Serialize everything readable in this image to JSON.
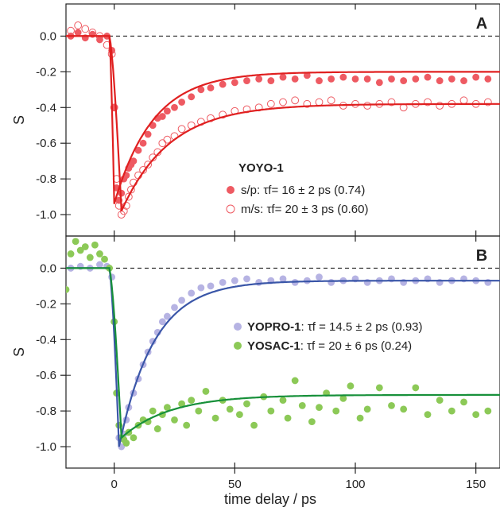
{
  "chart_data": [
    {
      "panel": "A",
      "type": "scatter",
      "xlabel": "time delay / ps",
      "ylabel": "S",
      "xlim": [
        -20,
        160
      ],
      "ylim": [
        -1.12,
        0.18
      ],
      "yticks": [
        0.0,
        -0.2,
        -0.4,
        -0.6,
        -0.8,
        -1.0
      ],
      "ytick_labels": [
        "0.0",
        "-0.2",
        "-0.4",
        "-0.6",
        "-0.8",
        "-1.0"
      ],
      "zero_line": "dashed",
      "legend_title": "YOYO-1",
      "legend_position": "lower-right",
      "series": [
        {
          "name": "s/p",
          "legend_label": "s/p: τf= 16 ± 2 ps (0.74)",
          "marker": "filled-circle",
          "color": "#ee5a62",
          "points": [
            [
              -18,
              0.0
            ],
            [
              -15,
              0.02
            ],
            [
              -12,
              -0.01
            ],
            [
              -9,
              0.01
            ],
            [
              -6,
              -0.02
            ],
            [
              -3,
              0.0
            ],
            [
              -1,
              -0.08
            ],
            [
              0,
              -0.4
            ],
            [
              1,
              -0.85
            ],
            [
              2,
              -0.92
            ],
            [
              3,
              -0.88
            ],
            [
              4,
              -0.8
            ],
            [
              5,
              -0.78
            ],
            [
              6,
              -0.74
            ],
            [
              7,
              -0.72
            ],
            [
              8,
              -0.7
            ],
            [
              10,
              -0.64
            ],
            [
              12,
              -0.6
            ],
            [
              14,
              -0.55
            ],
            [
              16,
              -0.5
            ],
            [
              18,
              -0.46
            ],
            [
              20,
              -0.45
            ],
            [
              22,
              -0.42
            ],
            [
              25,
              -0.4
            ],
            [
              28,
              -0.37
            ],
            [
              32,
              -0.34
            ],
            [
              36,
              -0.3
            ],
            [
              40,
              -0.29
            ],
            [
              45,
              -0.27
            ],
            [
              50,
              -0.26
            ],
            [
              55,
              -0.25
            ],
            [
              60,
              -0.24
            ],
            [
              65,
              -0.25
            ],
            [
              70,
              -0.23
            ],
            [
              75,
              -0.24
            ],
            [
              80,
              -0.22
            ],
            [
              85,
              -0.25
            ],
            [
              90,
              -0.24
            ],
            [
              95,
              -0.23
            ],
            [
              100,
              -0.24
            ],
            [
              105,
              -0.24
            ],
            [
              110,
              -0.26
            ],
            [
              115,
              -0.24
            ],
            [
              120,
              -0.25
            ],
            [
              125,
              -0.24
            ],
            [
              130,
              -0.23
            ],
            [
              135,
              -0.25
            ],
            [
              140,
              -0.24
            ],
            [
              145,
              -0.25
            ],
            [
              150,
              -0.23
            ],
            [
              155,
              -0.24
            ]
          ]
        },
        {
          "name": "m/s",
          "legend_label": "m/s: τf= 20 ± 3 ps (0.60)",
          "marker": "open-circle",
          "color": "#ee5a62",
          "points": [
            [
              -18,
              0.03
            ],
            [
              -15,
              0.06
            ],
            [
              -12,
              0.04
            ],
            [
              -9,
              0.02
            ],
            [
              -6,
              0.0
            ],
            [
              -3,
              -0.05
            ],
            [
              -1,
              -0.1
            ],
            [
              0,
              -0.4
            ],
            [
              1,
              -0.8
            ],
            [
              2,
              -0.95
            ],
            [
              3,
              -1.0
            ],
            [
              4,
              -0.98
            ],
            [
              5,
              -0.95
            ],
            [
              6,
              -0.9
            ],
            [
              7,
              -0.86
            ],
            [
              8,
              -0.82
            ],
            [
              10,
              -0.78
            ],
            [
              12,
              -0.75
            ],
            [
              14,
              -0.72
            ],
            [
              16,
              -0.68
            ],
            [
              18,
              -0.65
            ],
            [
              20,
              -0.6
            ],
            [
              22,
              -0.58
            ],
            [
              25,
              -0.56
            ],
            [
              28,
              -0.52
            ],
            [
              32,
              -0.5
            ],
            [
              36,
              -0.48
            ],
            [
              40,
              -0.46
            ],
            [
              45,
              -0.44
            ],
            [
              50,
              -0.42
            ],
            [
              55,
              -0.41
            ],
            [
              60,
              -0.4
            ],
            [
              65,
              -0.38
            ],
            [
              70,
              -0.37
            ],
            [
              75,
              -0.36
            ],
            [
              80,
              -0.38
            ],
            [
              85,
              -0.37
            ],
            [
              90,
              -0.36
            ],
            [
              95,
              -0.39
            ],
            [
              100,
              -0.38
            ],
            [
              105,
              -0.39
            ],
            [
              110,
              -0.38
            ],
            [
              115,
              -0.37
            ],
            [
              120,
              -0.4
            ],
            [
              125,
              -0.38
            ],
            [
              130,
              -0.37
            ],
            [
              135,
              -0.39
            ],
            [
              140,
              -0.38
            ],
            [
              145,
              -0.36
            ],
            [
              150,
              -0.38
            ],
            [
              155,
              -0.37
            ]
          ]
        }
      ],
      "fits": [
        {
          "series": "s/p",
          "color": "#e02020",
          "x_min": 0,
          "tau_ps": 16,
          "amplitude": 0.74,
          "s_min": -0.94
        },
        {
          "series": "m/s",
          "color": "#e02020",
          "x_min": 3,
          "tau_ps": 20,
          "amplitude": 0.6,
          "s_min": -0.98
        }
      ]
    },
    {
      "panel": "B",
      "type": "scatter",
      "xlabel": "time delay / ps",
      "ylabel": "S",
      "xlim": [
        -20,
        160
      ],
      "ylim": [
        -1.12,
        0.18
      ],
      "xticks": [
        0,
        50,
        100,
        150
      ],
      "xtick_labels": [
        "0",
        "50",
        "100",
        "150"
      ],
      "yticks": [
        0.0,
        -0.2,
        -0.4,
        -0.6,
        -0.8,
        -1.0
      ],
      "ytick_labels": [
        "0.0",
        "-0.2",
        "-0.4",
        "-0.6",
        "-0.8",
        "-1.0"
      ],
      "zero_line": "dashed",
      "legend_position": "right",
      "series": [
        {
          "name": "YOPRO-1",
          "legend_rest": ": τf = 14.5 ± 2 ps (0.93)",
          "marker": "filled-circle",
          "color": "#b6b3e3",
          "points": [
            [
              -18,
              0.0
            ],
            [
              -14,
              0.01
            ],
            [
              -10,
              0.0
            ],
            [
              -6,
              0.02
            ],
            [
              -3,
              0.01
            ],
            [
              -1,
              -0.05
            ],
            [
              0,
              -0.3
            ],
            [
              1,
              -0.7
            ],
            [
              2,
              -0.95
            ],
            [
              3,
              -1.0
            ],
            [
              4,
              -0.93
            ],
            [
              5,
              -0.85
            ],
            [
              6,
              -0.78
            ],
            [
              8,
              -0.7
            ],
            [
              10,
              -0.62
            ],
            [
              12,
              -0.54
            ],
            [
              14,
              -0.47
            ],
            [
              16,
              -0.41
            ],
            [
              18,
              -0.36
            ],
            [
              20,
              -0.3
            ],
            [
              22,
              -0.27
            ],
            [
              25,
              -0.22
            ],
            [
              28,
              -0.18
            ],
            [
              32,
              -0.14
            ],
            [
              36,
              -0.11
            ],
            [
              40,
              -0.1
            ],
            [
              45,
              -0.08
            ],
            [
              50,
              -0.07
            ],
            [
              55,
              -0.06
            ],
            [
              60,
              -0.08
            ],
            [
              65,
              -0.07
            ],
            [
              70,
              -0.06
            ],
            [
              75,
              -0.08
            ],
            [
              80,
              -0.07
            ],
            [
              85,
              -0.05
            ],
            [
              90,
              -0.08
            ],
            [
              95,
              -0.07
            ],
            [
              100,
              -0.06
            ],
            [
              105,
              -0.08
            ],
            [
              110,
              -0.07
            ],
            [
              115,
              -0.06
            ],
            [
              120,
              -0.08
            ],
            [
              125,
              -0.07
            ],
            [
              130,
              -0.06
            ],
            [
              135,
              -0.08
            ],
            [
              140,
              -0.07
            ],
            [
              145,
              -0.06
            ],
            [
              150,
              -0.07
            ],
            [
              155,
              -0.08
            ]
          ]
        },
        {
          "name": "YOSAC-1",
          "legend_rest": ": τf = 20 ± 6 ps (0.24)",
          "marker": "filled-circle",
          "color": "#8cc957",
          "points": [
            [
              -20,
              -0.12
            ],
            [
              -18,
              0.08
            ],
            [
              -16,
              0.15
            ],
            [
              -14,
              0.1
            ],
            [
              -12,
              0.12
            ],
            [
              -10,
              0.06
            ],
            [
              -8,
              0.13
            ],
            [
              -6,
              0.08
            ],
            [
              -4,
              0.05
            ],
            [
              -2,
              0.0
            ],
            [
              0,
              -0.3
            ],
            [
              1,
              -0.7
            ],
            [
              2,
              -0.88
            ],
            [
              3,
              -0.95
            ],
            [
              4,
              -0.96
            ],
            [
              5,
              -0.98
            ],
            [
              6,
              -0.92
            ],
            [
              8,
              -0.95
            ],
            [
              10,
              -0.88
            ],
            [
              12,
              -0.85
            ],
            [
              14,
              -0.86
            ],
            [
              16,
              -0.8
            ],
            [
              18,
              -0.9
            ],
            [
              20,
              -0.82
            ],
            [
              22,
              -0.78
            ],
            [
              25,
              -0.85
            ],
            [
              28,
              -0.76
            ],
            [
              30,
              -0.88
            ],
            [
              32,
              -0.74
            ],
            [
              35,
              -0.8
            ],
            [
              38,
              -0.69
            ],
            [
              42,
              -0.84
            ],
            [
              45,
              -0.74
            ],
            [
              48,
              -0.79
            ],
            [
              52,
              -0.82
            ],
            [
              55,
              -0.76
            ],
            [
              58,
              -0.88
            ],
            [
              62,
              -0.72
            ],
            [
              65,
              -0.8
            ],
            [
              70,
              -0.74
            ],
            [
              72,
              -0.84
            ],
            [
              75,
              -0.63
            ],
            [
              78,
              -0.77
            ],
            [
              82,
              -0.86
            ],
            [
              85,
              -0.78
            ],
            [
              88,
              -0.7
            ],
            [
              92,
              -0.8
            ],
            [
              95,
              -0.73
            ],
            [
              98,
              -0.66
            ],
            [
              102,
              -0.84
            ],
            [
              105,
              -0.79
            ],
            [
              110,
              -0.67
            ],
            [
              115,
              -0.77
            ],
            [
              120,
              -0.79
            ],
            [
              125,
              -0.67
            ],
            [
              130,
              -0.82
            ],
            [
              135,
              -0.74
            ],
            [
              140,
              -0.8
            ],
            [
              145,
              -0.75
            ],
            [
              150,
              -0.82
            ],
            [
              155,
              -0.8
            ]
          ]
        }
      ],
      "fits": [
        {
          "series": "YOPRO-1",
          "color": "#3a56a8",
          "x_min": 2,
          "tau_ps": 14.5,
          "amplitude": 0.93,
          "s_min": -1.0
        },
        {
          "series": "YOSAC-1",
          "color": "#17903a",
          "x_min": 3,
          "tau_ps": 20,
          "amplitude": 0.24,
          "s_min": -0.95
        }
      ]
    }
  ]
}
